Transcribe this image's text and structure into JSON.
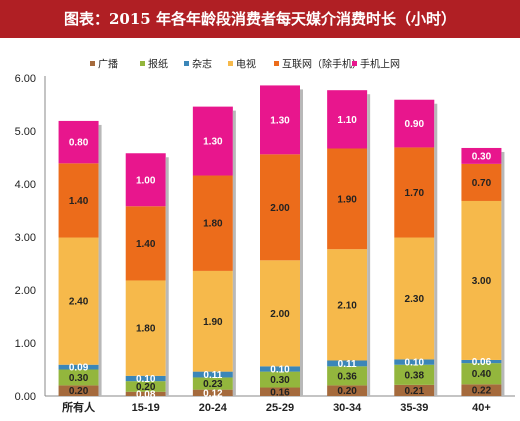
{
  "title": "图表：2015 年各年龄段消费者每天媒介消费时长（小时）",
  "colors": {
    "广播": "#a56a3c",
    "报纸": "#93b63d",
    "杂志": "#3b86b8",
    "电视": "#f6b94b",
    "互联网（除手机）": "#ec6c1b",
    "手机上网": "#e8168d"
  },
  "chart_data": {
    "type": "bar",
    "stacked": true,
    "title": "2015 年各年龄段消费者每天媒介消费时长（小时）",
    "xlabel": "",
    "ylabel": "",
    "ylim": [
      0,
      6
    ],
    "yticks": [
      "0.00",
      "1.00",
      "2.00",
      "3.00",
      "4.00",
      "5.00",
      "6.00"
    ],
    "legend_position": "top",
    "categories": [
      "所有人",
      "15-19",
      "20-24",
      "25-29",
      "30-34",
      "35-39",
      "40+"
    ],
    "series": [
      {
        "name": "广播",
        "values": [
          0.2,
          0.08,
          0.12,
          0.16,
          0.2,
          0.21,
          0.22
        ]
      },
      {
        "name": "报纸",
        "values": [
          0.3,
          0.2,
          0.23,
          0.3,
          0.36,
          0.38,
          0.4
        ]
      },
      {
        "name": "杂志",
        "values": [
          0.09,
          0.1,
          0.11,
          0.1,
          0.11,
          0.1,
          0.06
        ]
      },
      {
        "name": "电视",
        "values": [
          2.4,
          1.8,
          1.9,
          2.0,
          2.1,
          2.3,
          3.0
        ]
      },
      {
        "name": "互联网（除手机）",
        "values": [
          1.4,
          1.4,
          1.8,
          2.0,
          1.9,
          1.7,
          0.7
        ]
      },
      {
        "name": "手机上网",
        "values": [
          0.8,
          1.0,
          1.3,
          1.3,
          1.1,
          0.9,
          0.3
        ]
      }
    ]
  }
}
